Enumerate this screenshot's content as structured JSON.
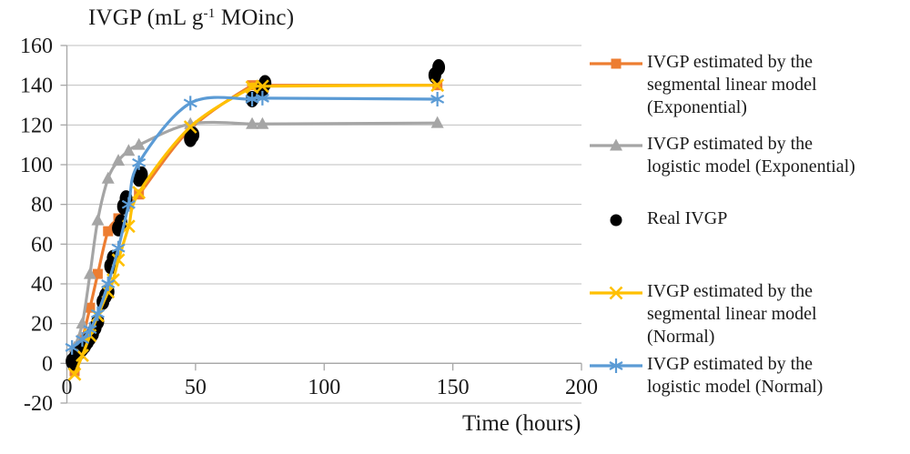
{
  "chart_data": {
    "type": "line+scatter",
    "title": {
      "prefix": "IVGP (mL g",
      "sup": "-1",
      "suffix": " MOinc)"
    },
    "xlabel": "Time (hours)",
    "ylabel": "",
    "xlim": [
      0,
      200
    ],
    "ylim": [
      -20,
      160
    ],
    "xticks": [
      0,
      50,
      100,
      150,
      200
    ],
    "yticks": [
      -20,
      0,
      20,
      40,
      60,
      80,
      100,
      120,
      140,
      160
    ],
    "grid": true,
    "legend_position": "right",
    "axis_color": "#a6a6a6",
    "grid_color": "#bfbfbf",
    "text_color": "#1a1a1a",
    "series": [
      {
        "name": "IVGP estimated by the\nsegmental linear model\n(Exponential)",
        "marker": "square",
        "color": "#ED7D31",
        "line": true,
        "points": [
          [
            3,
            -4
          ],
          [
            6,
            12
          ],
          [
            9,
            28
          ],
          [
            12,
            45
          ],
          [
            16,
            66.5
          ],
          [
            20,
            73
          ],
          [
            24,
            80
          ],
          [
            28,
            85
          ],
          [
            48,
            118
          ],
          [
            72,
            140
          ],
          [
            76,
            140
          ],
          [
            144,
            140
          ]
        ]
      },
      {
        "name": "IVGP estimated by the\nlogistic model (Exponential)",
        "marker": "triangle",
        "color": "#A5A5A5",
        "line": true,
        "points": [
          [
            3,
            8
          ],
          [
            6,
            20
          ],
          [
            9,
            45
          ],
          [
            12,
            72
          ],
          [
            16,
            93
          ],
          [
            20,
            102
          ],
          [
            24,
            107
          ],
          [
            28,
            110
          ],
          [
            48,
            120.5
          ],
          [
            72,
            120.5
          ],
          [
            76,
            120.5
          ],
          [
            144,
            121
          ]
        ]
      },
      {
        "name": "Real IVGP",
        "marker": "circle",
        "color": "#000000",
        "line": false,
        "points": [
          [
            2,
            1
          ],
          [
            2.5,
            0.5
          ],
          [
            3,
            2.5
          ],
          [
            3.5,
            3.5
          ],
          [
            4,
            4.5
          ],
          [
            5,
            6
          ],
          [
            6,
            7.5
          ],
          [
            7,
            9
          ],
          [
            8,
            11
          ],
          [
            9,
            13
          ],
          [
            10,
            15
          ],
          [
            11,
            18
          ],
          [
            12,
            21
          ],
          [
            14,
            31
          ],
          [
            15,
            34
          ],
          [
            16,
            36
          ],
          [
            17,
            49
          ],
          [
            18,
            53
          ],
          [
            20,
            68
          ],
          [
            21,
            71
          ],
          [
            22,
            79
          ],
          [
            23,
            83
          ],
          [
            28,
            93
          ],
          [
            29,
            95
          ],
          [
            48,
            113
          ],
          [
            49,
            115
          ],
          [
            72,
            133
          ],
          [
            76,
            138
          ],
          [
            77,
            141
          ],
          [
            143,
            145
          ],
          [
            144.5,
            149
          ]
        ]
      },
      {
        "name": "IVGP estimated by the\nsegmental linear model\n(Normal)",
        "marker": "x",
        "color": "#FFC000",
        "line": true,
        "points": [
          [
            3,
            -5.5
          ],
          [
            6,
            4
          ],
          [
            9,
            14
          ],
          [
            12,
            24
          ],
          [
            16,
            36
          ],
          [
            18,
            42
          ],
          [
            20,
            52
          ],
          [
            24,
            69
          ],
          [
            28,
            86
          ],
          [
            48,
            119
          ],
          [
            72,
            139
          ],
          [
            76,
            139.5
          ],
          [
            144,
            140
          ]
        ]
      },
      {
        "name": "IVGP estimated by the\nlogistic model (Normal)",
        "marker": "asterisk",
        "color": "#5B9BD5",
        "line": true,
        "points": [
          [
            2,
            8
          ],
          [
            6,
            12
          ],
          [
            9,
            17
          ],
          [
            12,
            25
          ],
          [
            16,
            40
          ],
          [
            20,
            58
          ],
          [
            24,
            80
          ],
          [
            28,
            101
          ],
          [
            48,
            131
          ],
          [
            72,
            133
          ],
          [
            76,
            133.5
          ],
          [
            144,
            133
          ]
        ]
      }
    ]
  }
}
